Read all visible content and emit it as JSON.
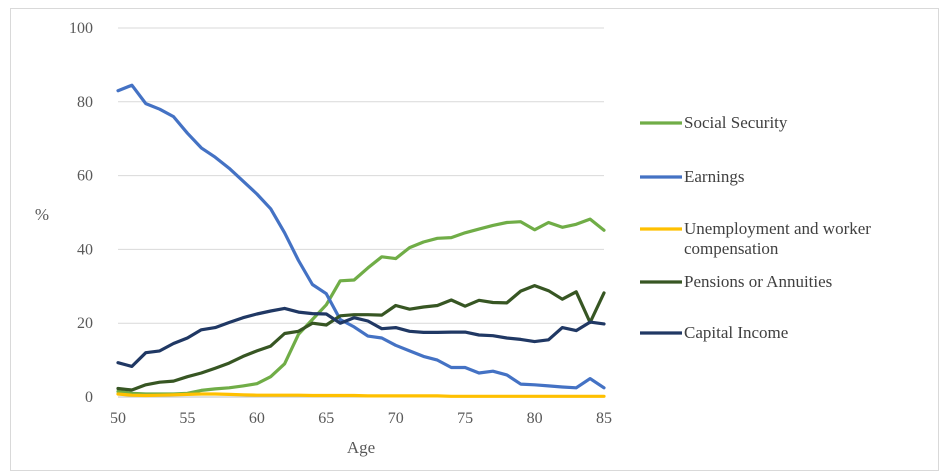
{
  "chart_data": {
    "type": "line",
    "title": "",
    "xlabel": "Age",
    "ylabel": "%",
    "xlim": [
      50,
      85
    ],
    "ylim": [
      0,
      100
    ],
    "xticks": [
      50,
      55,
      60,
      65,
      70,
      75,
      80,
      85
    ],
    "yticks": [
      0,
      20,
      40,
      60,
      80,
      100
    ],
    "grid": "horizontal",
    "legend_position": "right",
    "x": [
      50,
      51,
      52,
      53,
      54,
      55,
      56,
      57,
      58,
      59,
      60,
      61,
      62,
      63,
      64,
      65,
      66,
      67,
      68,
      69,
      70,
      71,
      72,
      73,
      74,
      75,
      76,
      77,
      78,
      79,
      80,
      81,
      82,
      83,
      84,
      85
    ],
    "series": [
      {
        "name": "Social Security",
        "legend_lines": [
          "Social Security"
        ],
        "color": "#70ad47",
        "values": [
          1.5,
          1.0,
          0.8,
          0.8,
          0.8,
          1.0,
          1.8,
          2.2,
          2.5,
          3.0,
          3.6,
          5.5,
          9.0,
          17,
          21,
          25,
          31.5,
          31.7,
          35,
          38,
          37.5,
          40.5,
          42,
          43,
          43.2,
          44.5,
          45.5,
          46.5,
          47.3,
          47.5,
          45.3,
          47.3,
          46,
          46.8,
          48.2,
          45.2
        ]
      },
      {
        "name": "Earnings",
        "legend_lines": [
          "Earnings"
        ],
        "color": "#4472c4",
        "values": [
          83,
          84.5,
          79.5,
          78,
          76,
          71.5,
          67.5,
          65,
          62,
          58.5,
          55,
          51,
          44.5,
          37,
          30.5,
          28,
          21,
          19,
          16.5,
          16,
          14,
          12.5,
          11,
          10,
          8,
          8,
          6.5,
          7,
          6,
          3.5,
          3.3,
          3,
          2.7,
          2.5,
          5,
          2.5
        ]
      },
      {
        "name": "Unemployment and worker compensation",
        "legend_lines": [
          "Unemployment and worker",
          "compensation"
        ],
        "color": "#ffc000",
        "values": [
          0.8,
          0.5,
          0.4,
          0.5,
          0.6,
          0.7,
          0.8,
          0.8,
          0.7,
          0.6,
          0.5,
          0.5,
          0.5,
          0.5,
          0.4,
          0.4,
          0.4,
          0.4,
          0.3,
          0.3,
          0.3,
          0.3,
          0.3,
          0.3,
          0.2,
          0.2,
          0.2,
          0.2,
          0.2,
          0.2,
          0.2,
          0.2,
          0.2,
          0.2,
          0.2,
          0.2
        ]
      },
      {
        "name": "Pensions or Annuities",
        "legend_lines": [
          "Pensions or Annuities"
        ],
        "color": "#375623",
        "values": [
          2.3,
          1.9,
          3.3,
          4.0,
          4.3,
          5.5,
          6.5,
          7.8,
          9.2,
          11,
          12.5,
          13.8,
          17.2,
          17.8,
          20,
          19.5,
          22,
          22.3,
          22.3,
          22.2,
          24.8,
          23.8,
          24.4,
          24.8,
          26.3,
          24.6,
          26.2,
          25.6,
          25.5,
          28.7,
          30.2,
          28.8,
          26.5,
          28.5,
          20.2,
          28.2
        ]
      },
      {
        "name": "Capital Income",
        "legend_lines": [
          "Capital Income"
        ],
        "color": "#203864",
        "values": [
          9.3,
          8.3,
          12,
          12.5,
          14.5,
          16,
          18.2,
          18.8,
          20.2,
          21.5,
          22.5,
          23.3,
          24,
          23,
          22.6,
          22.5,
          20,
          21.5,
          20.6,
          18.5,
          18.8,
          17.8,
          17.5,
          17.5,
          17.6,
          17.6,
          16.8,
          16.6,
          16,
          15.6,
          15,
          15.5,
          18.8,
          18,
          20.3,
          19.8
        ]
      }
    ]
  }
}
